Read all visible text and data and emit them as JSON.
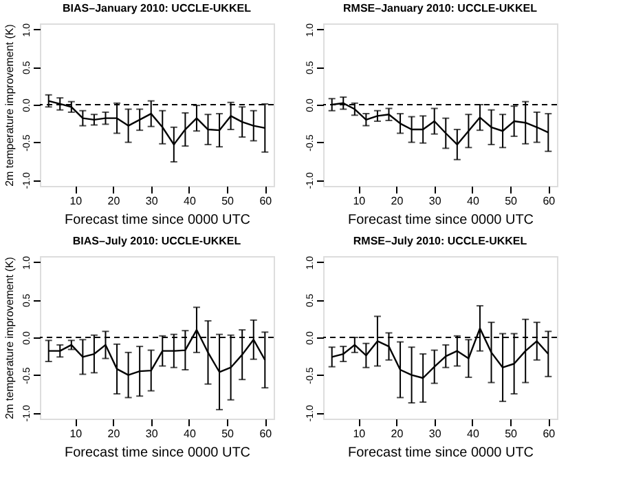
{
  "chart_data": [
    {
      "type": "line",
      "title": "BIAS–January 2010: UCCLE-UKKEL",
      "xlabel": "Forecast time since 0000 UTC",
      "ylabel": "2m temperature improvement (K)",
      "color": "#000000",
      "marker": "none",
      "line_style": "solid",
      "grid": false,
      "x": [
        3,
        6,
        9,
        12,
        15,
        18,
        21,
        24,
        27,
        30,
        33,
        36,
        39,
        42,
        45,
        48,
        51,
        54,
        57,
        60
      ],
      "values": [
        0.05,
        0.01,
        -0.03,
        -0.18,
        -0.2,
        -0.18,
        -0.18,
        -0.28,
        -0.2,
        -0.12,
        -0.3,
        -0.53,
        -0.33,
        -0.18,
        -0.33,
        -0.34,
        -0.15,
        -0.23,
        -0.28,
        -0.31
      ],
      "errors": [
        0.08,
        0.08,
        0.07,
        0.1,
        0.07,
        0.08,
        0.2,
        0.22,
        0.14,
        0.17,
        0.22,
        0.23,
        0.22,
        0.17,
        0.2,
        0.22,
        0.18,
        0.2,
        0.2,
        0.32
      ],
      "xlim": [
        0.7,
        62.3
      ],
      "xticks": [
        10,
        20,
        30,
        40,
        50,
        60
      ],
      "ylim": [
        -1.08,
        1.08
      ],
      "yticks": [
        {
          "value": -1,
          "label": "-1.0"
        },
        {
          "value": -0.5,
          "label": "-0.5"
        },
        {
          "value": 0,
          "label": "0.0"
        },
        {
          "value": 0.5,
          "label": "0.5"
        },
        {
          "value": 1,
          "label": "1.0"
        }
      ],
      "ref_lines": [
        {
          "axis": "y",
          "value": 0,
          "line_style": "dashed"
        }
      ]
    },
    {
      "type": "line",
      "title": "RMSE–January 2010: UCCLE-UKKEL",
      "xlabel": "Forecast time since 0000 UTC",
      "color": "#000000",
      "marker": "none",
      "line_style": "solid",
      "grid": false,
      "x": [
        3,
        6,
        9,
        12,
        15,
        18,
        21,
        24,
        27,
        30,
        33,
        36,
        39,
        42,
        45,
        48,
        51,
        54,
        57,
        60
      ],
      "values": [
        0.0,
        0.02,
        -0.06,
        -0.2,
        -0.15,
        -0.13,
        -0.25,
        -0.33,
        -0.33,
        -0.22,
        -0.38,
        -0.53,
        -0.35,
        -0.17,
        -0.3,
        -0.35,
        -0.22,
        -0.24,
        -0.3,
        -0.37
      ],
      "errors": [
        0.08,
        0.08,
        0.08,
        0.08,
        0.07,
        0.08,
        0.13,
        0.17,
        0.18,
        0.17,
        0.2,
        0.2,
        0.22,
        0.17,
        0.23,
        0.22,
        0.2,
        0.28,
        0.2,
        0.25
      ],
      "xlim": [
        0.7,
        62.3
      ],
      "xticks": [
        10,
        20,
        30,
        40,
        50,
        60
      ],
      "ylim": [
        -1.08,
        1.08
      ],
      "yticks": [
        {
          "value": -1,
          "label": "-1.0"
        },
        {
          "value": -0.5,
          "label": "-0.5"
        },
        {
          "value": 0,
          "label": "0.0"
        },
        {
          "value": 0.5,
          "label": "0.5"
        },
        {
          "value": 1,
          "label": "1.0"
        }
      ],
      "ref_lines": [
        {
          "axis": "y",
          "value": 0,
          "line_style": "dashed"
        }
      ]
    },
    {
      "type": "line",
      "title": "BIAS–July 2010: UCCLE-UKKEL",
      "xlabel": "Forecast time since 0000 UTC",
      "ylabel": "2m temperature improvement (K)",
      "color": "#000000",
      "marker": "none",
      "line_style": "solid",
      "grid": false,
      "x": [
        3,
        6,
        9,
        12,
        15,
        18,
        21,
        24,
        27,
        30,
        33,
        36,
        39,
        42,
        45,
        48,
        51,
        54,
        57,
        60
      ],
      "values": [
        -0.18,
        -0.18,
        -0.1,
        -0.26,
        -0.22,
        -0.1,
        -0.42,
        -0.5,
        -0.45,
        -0.44,
        -0.18,
        -0.18,
        -0.17,
        0.1,
        -0.2,
        -0.46,
        -0.4,
        -0.23,
        -0.03,
        -0.3
      ],
      "errors": [
        0.14,
        0.08,
        0.06,
        0.23,
        0.25,
        0.18,
        0.33,
        0.3,
        0.33,
        0.27,
        0.2,
        0.22,
        0.26,
        0.3,
        0.42,
        0.5,
        0.43,
        0.33,
        0.26,
        0.37
      ],
      "xlim": [
        0.7,
        62.3
      ],
      "xticks": [
        10,
        20,
        30,
        40,
        50,
        60
      ],
      "ylim": [
        -1.08,
        1.08
      ],
      "yticks": [
        {
          "value": -1,
          "label": "-1.0"
        },
        {
          "value": -0.5,
          "label": "-0.5"
        },
        {
          "value": 0,
          "label": "0.0"
        },
        {
          "value": 0.5,
          "label": "0.5"
        },
        {
          "value": 1,
          "label": "1.0"
        }
      ],
      "ref_lines": [
        {
          "axis": "y",
          "value": 0,
          "line_style": "dashed"
        }
      ]
    },
    {
      "type": "line",
      "title": "RMSE–July 2010: UCCLE-UKKEL",
      "xlabel": "Forecast time since 0000 UTC",
      "color": "#000000",
      "marker": "none",
      "line_style": "solid",
      "grid": false,
      "x": [
        3,
        6,
        9,
        12,
        15,
        18,
        21,
        24,
        27,
        30,
        33,
        36,
        39,
        42,
        45,
        48,
        51,
        54,
        57,
        60
      ],
      "values": [
        -0.26,
        -0.22,
        -0.1,
        -0.24,
        -0.05,
        -0.12,
        -0.43,
        -0.5,
        -0.54,
        -0.39,
        -0.25,
        -0.18,
        -0.28,
        0.12,
        -0.2,
        -0.4,
        -0.35,
        -0.18,
        -0.05,
        -0.22
      ],
      "errors": [
        0.13,
        0.1,
        0.1,
        0.16,
        0.33,
        0.18,
        0.37,
        0.37,
        0.32,
        0.22,
        0.15,
        0.2,
        0.25,
        0.3,
        0.4,
        0.45,
        0.4,
        0.42,
        0.25,
        0.3
      ],
      "xlim": [
        0.7,
        62.3
      ],
      "xticks": [
        10,
        20,
        30,
        40,
        50,
        60
      ],
      "ylim": [
        -1.08,
        1.08
      ],
      "yticks": [
        {
          "value": -1,
          "label": "-1.0"
        },
        {
          "value": -0.5,
          "label": "-0.5"
        },
        {
          "value": 0,
          "label": "0.0"
        },
        {
          "value": 0.5,
          "label": "0.5"
        },
        {
          "value": 1,
          "label": "1.0"
        }
      ],
      "ref_lines": [
        {
          "axis": "y",
          "value": 0,
          "line_style": "dashed"
        }
      ]
    }
  ]
}
